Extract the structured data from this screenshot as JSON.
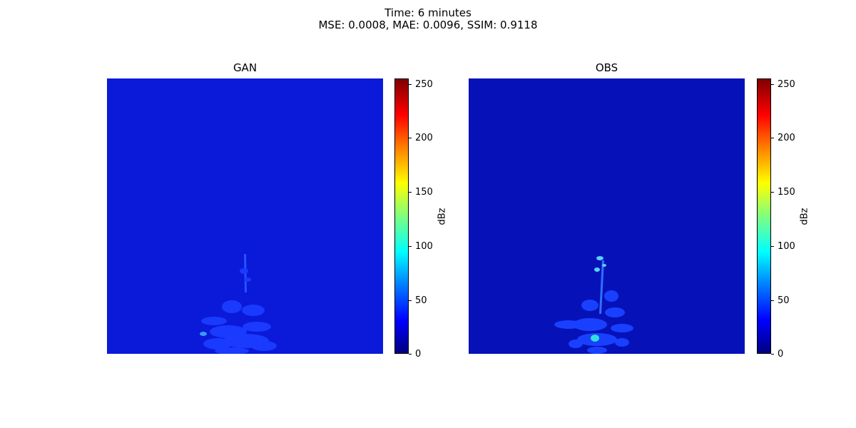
{
  "figure": {
    "suptitle_line1": "Time: 6 minutes",
    "suptitle_line2": "MSE: 0.0008, MAE: 0.0096, SSIM: 0.9118"
  },
  "chart_data": [
    {
      "type": "heatmap",
      "title": "GAN",
      "colorbar_label": "dBz",
      "colorbar_ticks": [
        0,
        50,
        100,
        150,
        200,
        250
      ],
      "vlim": [
        0,
        255
      ],
      "colormap": "jet",
      "background_value": 20,
      "axes_visible": false
    },
    {
      "type": "heatmap",
      "title": "OBS",
      "colorbar_label": "dBz",
      "colorbar_ticks": [
        0,
        50,
        100,
        150,
        200,
        250
      ],
      "vlim": [
        0,
        255
      ],
      "colormap": "jet",
      "background_value": 10,
      "axes_visible": false
    }
  ]
}
